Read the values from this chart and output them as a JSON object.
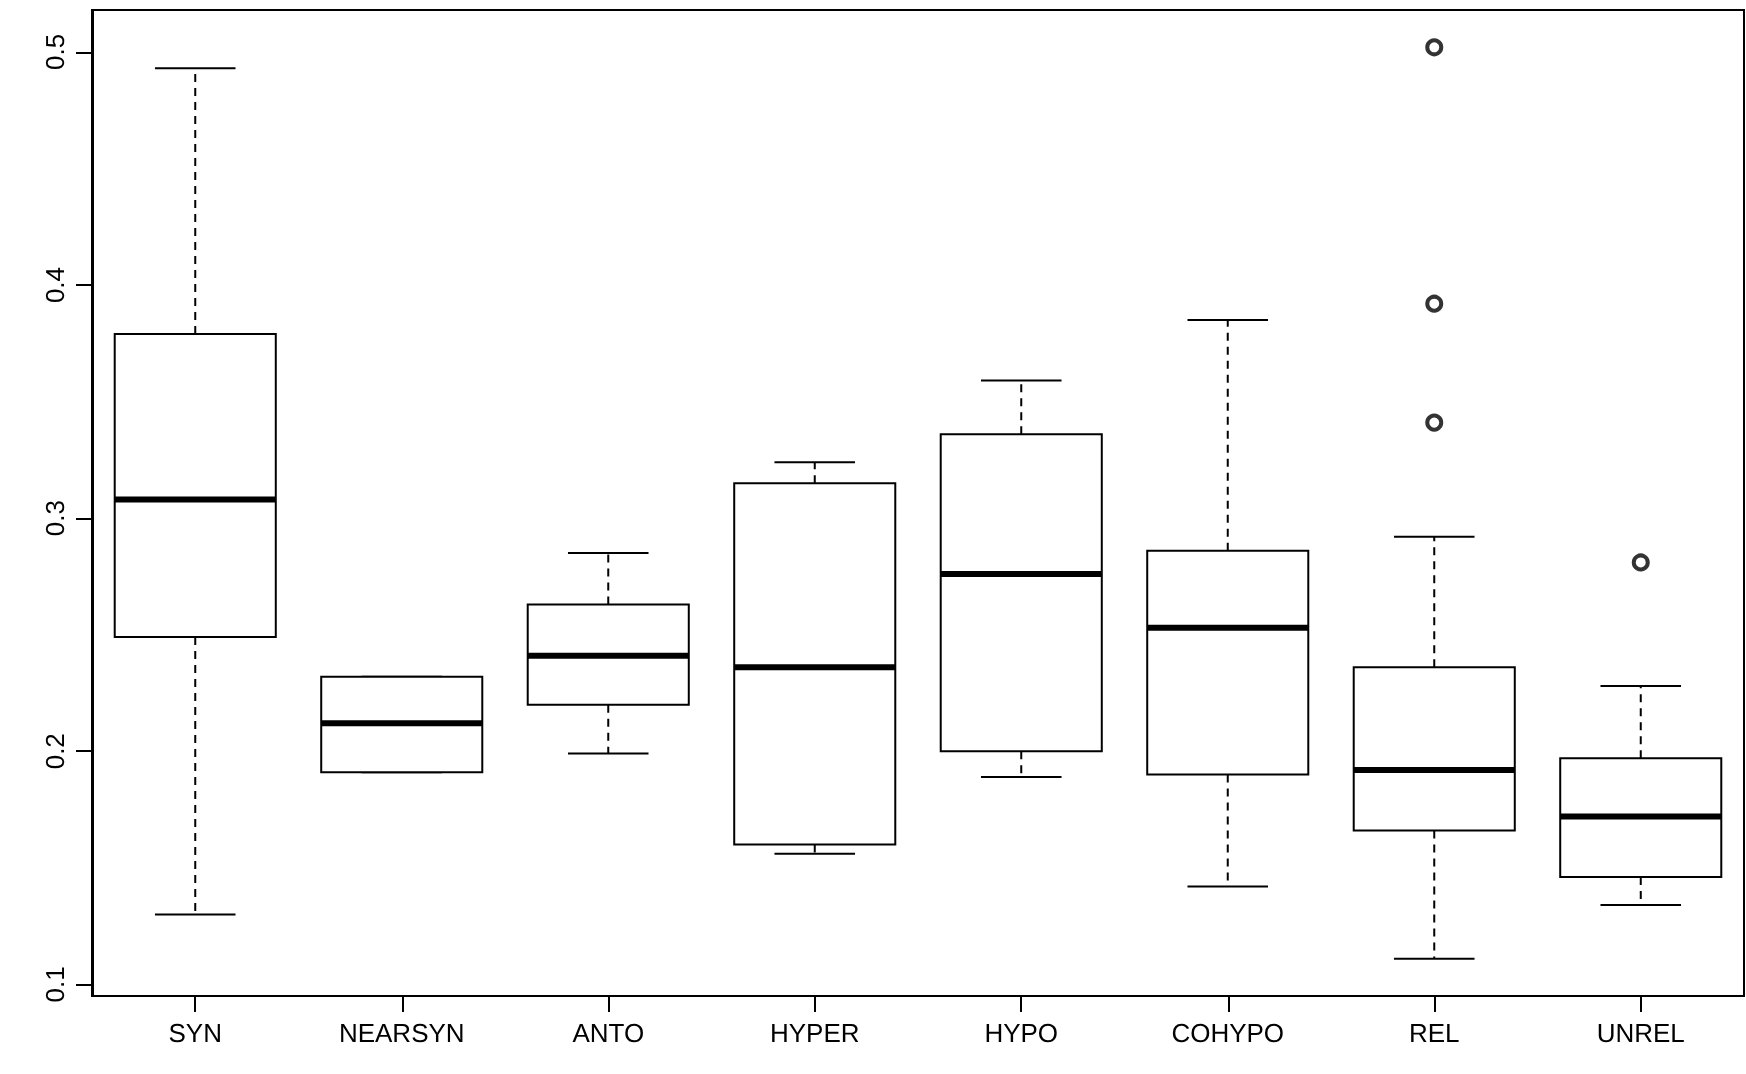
{
  "chart_data": {
    "type": "box",
    "categories": [
      "SYN",
      "NEARSYN",
      "ANTO",
      "HYPER",
      "HYPO",
      "COHYPO",
      "REL",
      "UNREL"
    ],
    "boxes": [
      {
        "low": 0.13,
        "q1": 0.249,
        "median": 0.308,
        "q3": 0.379,
        "high": 0.493
      },
      {
        "low": 0.191,
        "q1": 0.191,
        "median": 0.212,
        "q3": 0.232,
        "high": 0.232
      },
      {
        "low": 0.199,
        "q1": 0.22,
        "median": 0.241,
        "q3": 0.263,
        "high": 0.285
      },
      {
        "low": 0.156,
        "q1": 0.16,
        "median": 0.236,
        "q3": 0.315,
        "high": 0.324
      },
      {
        "low": 0.189,
        "q1": 0.2,
        "median": 0.276,
        "q3": 0.336,
        "high": 0.359
      },
      {
        "low": 0.142,
        "q1": 0.19,
        "median": 0.253,
        "q3": 0.286,
        "high": 0.385
      },
      {
        "low": 0.111,
        "q1": 0.166,
        "median": 0.192,
        "q3": 0.236,
        "high": 0.292,
        "outliers": [
          0.502,
          0.392,
          0.341
        ]
      },
      {
        "low": 0.134,
        "q1": 0.146,
        "median": 0.172,
        "q3": 0.197,
        "high": 0.228,
        "outliers": [
          0.281
        ]
      }
    ],
    "color": "#000000",
    "ylim": [
      0.095,
      0.518
    ],
    "yticks": [
      0.1,
      0.2,
      0.3,
      0.4,
      0.5
    ],
    "grid": false
  }
}
